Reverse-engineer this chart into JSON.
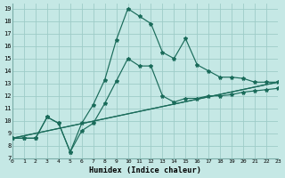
{
  "xlabel": "Humidex (Indice chaleur)",
  "bg_color": "#c5e8e5",
  "grid_color": "#9eccc8",
  "line_color": "#1a6b5a",
  "xlim": [
    0,
    23
  ],
  "ylim": [
    7,
    19.4
  ],
  "xticks": [
    0,
    1,
    2,
    3,
    4,
    5,
    6,
    7,
    8,
    9,
    10,
    11,
    12,
    13,
    14,
    15,
    16,
    17,
    18,
    19,
    20,
    21,
    22,
    23
  ],
  "yticks": [
    7,
    8,
    9,
    10,
    11,
    12,
    13,
    14,
    15,
    16,
    17,
    18,
    19
  ],
  "series": [
    {
      "x": [
        0,
        1,
        2,
        3,
        4,
        5,
        6,
        7,
        8,
        9,
        10,
        11,
        12,
        13,
        14,
        15,
        16,
        17,
        18,
        19,
        20,
        21,
        22,
        23
      ],
      "y": [
        8.6,
        8.6,
        8.6,
        10.3,
        9.8,
        7.5,
        9.8,
        11.3,
        13.3,
        16.5,
        19.0,
        18.4,
        17.8,
        15.5,
        15.0,
        16.6,
        14.5,
        14.0,
        13.5,
        13.5,
        13.4,
        13.1,
        13.1,
        13.1
      ],
      "marker": true
    },
    {
      "x": [
        0,
        1,
        2,
        3,
        4,
        5,
        6,
        7,
        8,
        9,
        10,
        11,
        12,
        13,
        14,
        15,
        16,
        17,
        18,
        19,
        20,
        21,
        22,
        23
      ],
      "y": [
        8.6,
        8.6,
        8.6,
        10.3,
        9.8,
        7.5,
        9.2,
        9.8,
        11.4,
        13.2,
        15.0,
        14.4,
        14.4,
        12.0,
        11.5,
        11.8,
        11.8,
        12.0,
        12.0,
        12.1,
        12.3,
        12.4,
        12.5,
        12.6
      ],
      "marker": true
    },
    {
      "x": [
        0,
        23
      ],
      "y": [
        8.6,
        13.1
      ],
      "marker": false
    },
    {
      "x": [
        0,
        23
      ],
      "y": [
        8.6,
        13.1
      ],
      "marker": false
    }
  ]
}
